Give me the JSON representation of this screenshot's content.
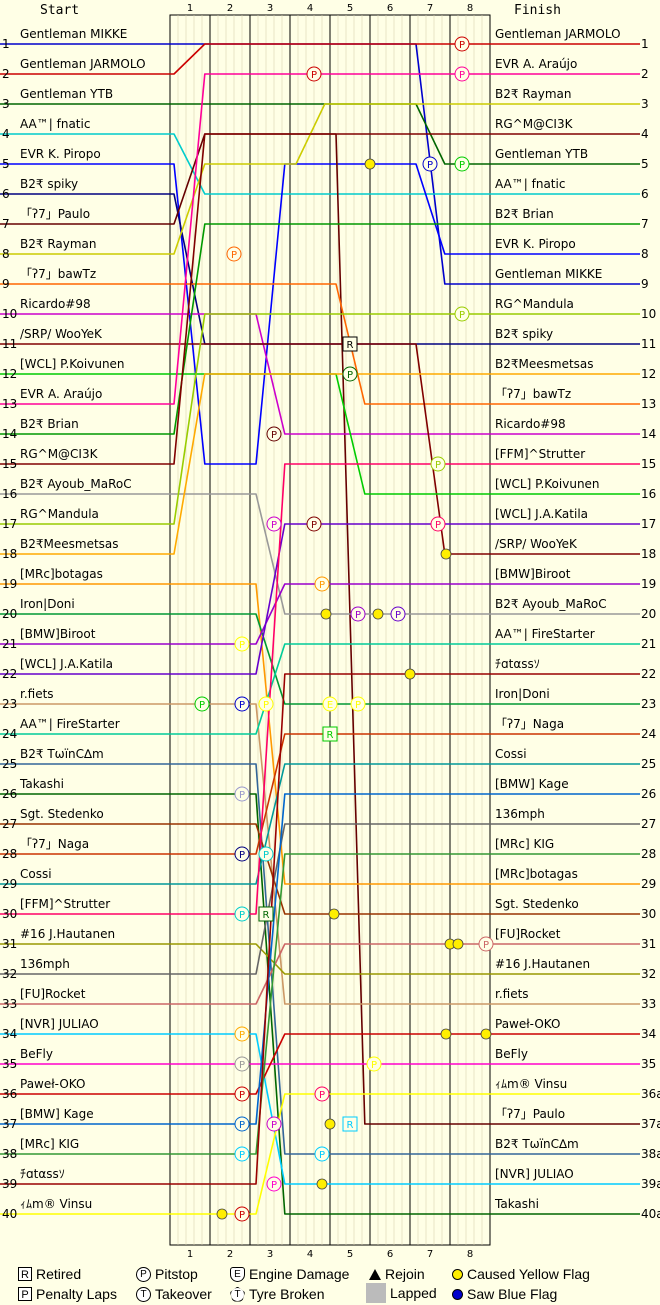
{
  "chart_data": {
    "type": "line",
    "title": "",
    "header_left": "Start",
    "header_right": "Finish",
    "laps": [
      "1",
      "2",
      "3",
      "4",
      "5",
      "6",
      "7",
      "8"
    ],
    "positions": [
      "1",
      "2",
      "3",
      "4",
      "5",
      "6",
      "7",
      "8",
      "9",
      "10",
      "11",
      "12",
      "13",
      "14",
      "15",
      "16",
      "17",
      "18",
      "19",
      "20",
      "21",
      "22",
      "23",
      "24",
      "25",
      "26",
      "27",
      "28",
      "29",
      "30",
      "31",
      "32",
      "33",
      "34",
      "35",
      "36",
      "37",
      "38",
      "39",
      "40"
    ],
    "finish_positions": [
      "1",
      "2",
      "3",
      "4",
      "5",
      "6",
      "7",
      "8",
      "9",
      "10",
      "11",
      "12",
      "13",
      "14",
      "15",
      "16",
      "17",
      "18",
      "19",
      "20",
      "21",
      "22",
      "23",
      "24",
      "25",
      "26",
      "27",
      "28",
      "29",
      "30",
      "31",
      "32",
      "33",
      "34",
      "35",
      "36a",
      "37a",
      "38a",
      "39a",
      "40a"
    ],
    "drivers": [
      {
        "name": "Gentleman MIKKE",
        "color": "#0000CC",
        "start": 1,
        "finish": 9,
        "route": [
          1,
          1,
          1,
          1,
          1,
          1,
          1,
          9,
          9
        ]
      },
      {
        "name": "Gentleman JARMOLO",
        "color": "#CC0000",
        "start": 2,
        "finish": 1,
        "route": [
          2,
          1,
          1,
          1,
          1,
          1,
          1,
          1,
          1
        ]
      },
      {
        "name": "Gentleman YTB",
        "color": "#006600",
        "start": 3,
        "finish": 5,
        "route": [
          3,
          3,
          3,
          3,
          3,
          3,
          3,
          5,
          5
        ]
      },
      {
        "name": "AA™| fnatic",
        "color": "#00CCCC",
        "start": 4,
        "finish": 6,
        "route": [
          4,
          6,
          6,
          6,
          6,
          6,
          6,
          6,
          6
        ]
      },
      {
        "name": "EVR K. Piropo",
        "color": "#0000FF",
        "start": 5,
        "finish": 8,
        "route": [
          5,
          15,
          15,
          5,
          5,
          5,
          5,
          8,
          8
        ]
      },
      {
        "name": "B2₹ spiky",
        "color": "#000080",
        "start": 6,
        "finish": 11,
        "route": [
          6,
          11,
          11,
          11,
          11,
          11,
          11,
          11,
          11
        ]
      },
      {
        "name": "「ʔ7」Paulo",
        "color": "#660000",
        "start": 7,
        "finish": 37,
        "route": [
          7,
          4,
          4,
          4,
          4,
          37,
          37,
          37,
          37
        ]
      },
      {
        "name": "B2₹ Rayman",
        "color": "#CCCC00",
        "start": 8,
        "finish": 3,
        "route": [
          8,
          5,
          5,
          5,
          3,
          3,
          3,
          3,
          3
        ]
      },
      {
        "name": "「ʔ7」bawTz",
        "color": "#FF6600",
        "start": 9,
        "finish": 13,
        "route": [
          9,
          9,
          9,
          9,
          9,
          13,
          13,
          13,
          13
        ]
      },
      {
        "name": "Ricardo#98",
        "color": "#CC00CC",
        "start": 10,
        "finish": 14,
        "route": [
          10,
          10,
          10,
          14,
          14,
          14,
          14,
          14,
          14
        ]
      },
      {
        "name": "/SRP/ WooYeK",
        "color": "#800000",
        "start": 11,
        "finish": 18,
        "route": [
          11,
          11,
          11,
          11,
          11,
          11,
          11,
          18,
          18
        ]
      },
      {
        "name": "[WCL] P.Koivunen",
        "color": "#00CC00",
        "start": 12,
        "finish": 16,
        "route": [
          12,
          12,
          12,
          12,
          12,
          16,
          16,
          16,
          16
        ]
      },
      {
        "name": "EVR A. Araújo",
        "color": "#FF0099",
        "start": 13,
        "finish": 2,
        "route": [
          13,
          2,
          2,
          2,
          2,
          2,
          2,
          2,
          2
        ]
      },
      {
        "name": "B2₹ Brian",
        "color": "#009900",
        "start": 14,
        "finish": 7,
        "route": [
          14,
          7,
          7,
          7,
          7,
          7,
          7,
          7,
          7
        ]
      },
      {
        "name": "RG^M@CI3K",
        "color": "#800000",
        "start": 15,
        "finish": 4,
        "route": [
          15,
          4,
          4,
          4,
          4,
          4,
          4,
          4,
          4
        ]
      },
      {
        "name": "B2₹ Ayoub_MaRoC",
        "color": "#999999",
        "start": 16,
        "finish": 20,
        "route": [
          16,
          16,
          16,
          20,
          20,
          20,
          20,
          20,
          20
        ]
      },
      {
        "name": "RG^Mandula",
        "color": "#99CC00",
        "start": 17,
        "finish": 10,
        "route": [
          17,
          10,
          10,
          10,
          10,
          10,
          10,
          10,
          10
        ]
      },
      {
        "name": "B2₹Meesmetsas",
        "color": "#FFAA00",
        "start": 18,
        "finish": 12,
        "route": [
          18,
          12,
          12,
          12,
          12,
          12,
          12,
          12,
          12
        ]
      },
      {
        "name": "[MRc]botagas",
        "color": "#FF9900",
        "start": 19,
        "finish": 29,
        "route": [
          19,
          19,
          19,
          29,
          29,
          29,
          29,
          29,
          29
        ]
      },
      {
        "name": "Iron|Doni",
        "color": "#009933",
        "start": 20,
        "finish": 23,
        "route": [
          20,
          20,
          20,
          23,
          23,
          23,
          23,
          23,
          23
        ]
      },
      {
        "name": "[BMW]Biroot",
        "color": "#9900CC",
        "start": 21,
        "finish": 19,
        "route": [
          21,
          21,
          21,
          19,
          19,
          19,
          19,
          19,
          19
        ]
      },
      {
        "name": "[WCL] J.A.Katila",
        "color": "#6600CC",
        "start": 22,
        "finish": 17,
        "route": [
          22,
          22,
          22,
          17,
          17,
          17,
          17,
          17,
          17
        ]
      },
      {
        "name": "r.fiets",
        "color": "#CC9966",
        "start": 23,
        "finish": 33,
        "route": [
          23,
          23,
          23,
          33,
          33,
          33,
          33,
          33,
          33
        ]
      },
      {
        "name": "AA™| FireStarter",
        "color": "#00CC99",
        "start": 24,
        "finish": 21,
        "route": [
          24,
          24,
          24,
          21,
          21,
          21,
          21,
          21,
          21
        ]
      },
      {
        "name": "B2₹ TωïnC∆m",
        "color": "#336699",
        "start": 25,
        "finish": 38,
        "route": [
          25,
          25,
          25,
          38,
          38,
          38,
          38,
          38,
          38
        ]
      },
      {
        "name": "Takashi",
        "color": "#006600",
        "start": 26,
        "finish": 40,
        "route": [
          26,
          26,
          26,
          40,
          40,
          40,
          40,
          40,
          40
        ]
      },
      {
        "name": "Sgt. Stedenko",
        "color": "#993300",
        "start": 27,
        "finish": 30,
        "route": [
          27,
          27,
          27,
          30,
          30,
          30,
          30,
          30,
          30
        ]
      },
      {
        "name": "「ʔ7」Naga",
        "color": "#CC3300",
        "start": 28,
        "finish": 24,
        "route": [
          28,
          28,
          28,
          24,
          24,
          24,
          24,
          24,
          24
        ]
      },
      {
        "name": "Cossi",
        "color": "#009999",
        "start": 29,
        "finish": 25,
        "route": [
          29,
          29,
          29,
          25,
          25,
          25,
          25,
          25,
          25
        ]
      },
      {
        "name": "[FFM]^Strutter",
        "color": "#FF0066",
        "start": 30,
        "finish": 15,
        "route": [
          30,
          30,
          30,
          15,
          15,
          15,
          15,
          15,
          15
        ]
      },
      {
        "name": "#16 J.Hautanen",
        "color": "#999900",
        "start": 31,
        "finish": 32,
        "route": [
          31,
          31,
          31,
          32,
          32,
          32,
          32,
          32,
          32
        ]
      },
      {
        "name": "136mph",
        "color": "#666666",
        "start": 32,
        "finish": 27,
        "route": [
          32,
          32,
          32,
          27,
          27,
          27,
          27,
          27,
          27
        ]
      },
      {
        "name": "[FU]Rocket",
        "color": "#CC6666",
        "start": 33,
        "finish": 31,
        "route": [
          33,
          33,
          33,
          31,
          31,
          31,
          31,
          31,
          31
        ]
      },
      {
        "name": "[NVR] JULIAO",
        "color": "#00CCFF",
        "start": 34,
        "finish": 39,
        "route": [
          34,
          34,
          34,
          39,
          39,
          39,
          39,
          39,
          39
        ]
      },
      {
        "name": "BeFly",
        "color": "#FF00CC",
        "start": 35,
        "finish": 35,
        "route": [
          35,
          35,
          35,
          35,
          35,
          35,
          35,
          35,
          35
        ]
      },
      {
        "name": "Paweł-OKO",
        "color": "#CC0000",
        "start": 36,
        "finish": 34,
        "route": [
          36,
          36,
          36,
          34,
          34,
          34,
          34,
          34,
          34
        ]
      },
      {
        "name": "[BMW] Kage",
        "color": "#0066CC",
        "start": 37,
        "finish": 26,
        "route": [
          37,
          37,
          37,
          26,
          26,
          26,
          26,
          26,
          26
        ]
      },
      {
        "name": "[MRc] KIG",
        "color": "#339933",
        "start": 38,
        "finish": 28,
        "route": [
          38,
          38,
          38,
          28,
          28,
          28,
          28,
          28,
          28
        ]
      },
      {
        "name": "ﾁɑtαssｿ",
        "color": "#990000",
        "start": 39,
        "finish": 22,
        "route": [
          39,
          39,
          39,
          22,
          22,
          22,
          22,
          22,
          22
        ]
      },
      {
        "name": "ｨﾑm® Vinsu",
        "color": "#FFFF00",
        "start": 40,
        "finish": 36,
        "route": [
          40,
          40,
          40,
          36,
          36,
          36,
          36,
          36,
          36
        ]
      }
    ],
    "finish_order": [
      "Gentleman JARMOLO",
      "EVR A. Araújo",
      "B2₹ Rayman",
      "RG^M@CI3K",
      "Gentleman YTB",
      "AA™| fnatic",
      "B2₹ Brian",
      "EVR K. Piropo",
      "Gentleman MIKKE",
      "RG^Mandula",
      "B2₹ spiky",
      "B2₹Meesmetsas",
      "「ʔ7」bawTz",
      "Ricardo#98",
      "[FFM]^Strutter",
      "[WCL] P.Koivunen",
      "[WCL] J.A.Katila",
      "/SRP/ WooYeK",
      "[BMW]Biroot",
      "B2₹ Ayoub_MaRoC",
      "AA™| FireStarter",
      "ﾁɑtαssｿ",
      "Iron|Doni",
      "「ʔ7」Naga",
      "Cossi",
      "[BMW] Kage",
      "136mph",
      "[MRc] KIG",
      "[MRc]botagas",
      "Sgt. Stedenko",
      "[FU]Rocket",
      "#16 J.Hautanen",
      "r.fiets",
      "Paweł-OKO",
      "BeFly",
      "ｨﾑm® Vinsu",
      "「ʔ7」Paulo",
      "B2₹ TωïnC∆m",
      "[NVR] JULIAO",
      "Takashi"
    ],
    "markers": [
      {
        "type": "P",
        "lap": 7.3,
        "pos": 1,
        "color": "#CC0000"
      },
      {
        "type": "P",
        "lap": 7.3,
        "pos": 2,
        "color": "#FF0099"
      },
      {
        "type": "P",
        "lap": 3.6,
        "pos": 2,
        "color": "#CC0000"
      },
      {
        "type": "Y",
        "lap": 5.0,
        "pos": 5,
        "color": "#FFFF00"
      },
      {
        "type": "P",
        "lap": 6.5,
        "pos": 5,
        "color": "#0000CC"
      },
      {
        "type": "P",
        "lap": 7.3,
        "pos": 5,
        "color": "#00CC00"
      },
      {
        "type": "P",
        "lap": 1.6,
        "pos": 8,
        "color": "#FF6600"
      },
      {
        "type": "P",
        "lap": 7.3,
        "pos": 10,
        "color": "#99CC00"
      },
      {
        "type": "R",
        "lap": 4.5,
        "pos": 11,
        "color": "#000000"
      },
      {
        "type": "P",
        "lap": 4.5,
        "pos": 12,
        "color": "#006600"
      },
      {
        "type": "P",
        "lap": 2.6,
        "pos": 14,
        "color": "#660000"
      },
      {
        "type": "P",
        "lap": 6.7,
        "pos": 15,
        "color": "#99CC00"
      },
      {
        "type": "P",
        "lap": 2.6,
        "pos": 17,
        "color": "#CC00CC"
      },
      {
        "type": "P",
        "lap": 3.6,
        "pos": 17,
        "color": "#800000"
      },
      {
        "type": "P",
        "lap": 6.7,
        "pos": 17,
        "color": "#FF0066"
      },
      {
        "type": "Y",
        "lap": 6.9,
        "pos": 18,
        "color": "#FFFF00"
      },
      {
        "type": "P",
        "lap": 3.8,
        "pos": 19,
        "color": "#FF9900"
      },
      {
        "type": "Y",
        "lap": 3.9,
        "pos": 20,
        "color": "#FFFF00"
      },
      {
        "type": "P",
        "lap": 4.7,
        "pos": 20,
        "color": "#9900CC"
      },
      {
        "type": "Y",
        "lap": 5.2,
        "pos": 20,
        "color": "#FFFF00"
      },
      {
        "type": "P",
        "lap": 5.7,
        "pos": 20,
        "color": "#6600CC"
      },
      {
        "type": "P",
        "lap": 1.8,
        "pos": 21,
        "color": "#FFFF00"
      },
      {
        "type": "Y",
        "lap": 6.0,
        "pos": 22,
        "color": "#FFFF00"
      },
      {
        "type": "P",
        "lap": 0.8,
        "pos": 23,
        "color": "#00CC00"
      },
      {
        "type": "P",
        "lap": 1.8,
        "pos": 23,
        "color": "#0000CC"
      },
      {
        "type": "P",
        "lap": 2.4,
        "pos": 23,
        "color": "#FFFF00"
      },
      {
        "type": "E",
        "lap": 4.0,
        "pos": 23,
        "color": "#FFFF00"
      },
      {
        "type": "P",
        "lap": 4.7,
        "pos": 23,
        "color": "#FFFF00"
      },
      {
        "type": "R",
        "lap": 4.0,
        "pos": 24,
        "color": "#00CC00"
      },
      {
        "type": "P",
        "lap": 1.8,
        "pos": 26,
        "color": "#9999CC"
      },
      {
        "type": "P",
        "lap": 1.8,
        "pos": 28,
        "color": "#000080"
      },
      {
        "type": "P",
        "lap": 2.4,
        "pos": 28,
        "color": "#00CCCC"
      },
      {
        "type": "R",
        "lap": 2.4,
        "pos": 30,
        "color": "#006600"
      },
      {
        "type": "Y",
        "lap": 4.1,
        "pos": 30,
        "color": "#FFFF00"
      },
      {
        "type": "P",
        "lap": 1.8,
        "pos": 30,
        "color": "#00CCCC"
      },
      {
        "type": "Y",
        "lap": 7.0,
        "pos": 31,
        "color": "#FFFF00"
      },
      {
        "type": "Y",
        "lap": 7.2,
        "pos": 31,
        "color": "#FFFF00"
      },
      {
        "type": "P",
        "lap": 7.9,
        "pos": 31,
        "color": "#CC6666"
      },
      {
        "type": "Y",
        "lap": 6.9,
        "pos": 34,
        "color": "#FFFF00"
      },
      {
        "type": "Y",
        "lap": 7.9,
        "pos": 34,
        "color": "#FFFF00"
      },
      {
        "type": "P",
        "lap": 1.8,
        "pos": 34,
        "color": "#FFAA00"
      },
      {
        "type": "P",
        "lap": 1.8,
        "pos": 35,
        "color": "#999999"
      },
      {
        "type": "P",
        "lap": 5.1,
        "pos": 35,
        "color": "#FFFF00"
      },
      {
        "type": "P",
        "lap": 1.8,
        "pos": 36,
        "color": "#CC0000"
      },
      {
        "type": "P",
        "lap": 3.8,
        "pos": 36,
        "color": "#FF0066"
      },
      {
        "type": "P",
        "lap": 1.8,
        "pos": 37,
        "color": "#0066CC"
      },
      {
        "type": "P",
        "lap": 2.6,
        "pos": 37,
        "color": "#CC00CC"
      },
      {
        "type": "Y",
        "lap": 4.0,
        "pos": 37,
        "color": "#FFFF00"
      },
      {
        "type": "R",
        "lap": 4.5,
        "pos": 37,
        "color": "#00CCFF"
      },
      {
        "type": "P",
        "lap": 1.8,
        "pos": 38,
        "color": "#00CCFF"
      },
      {
        "type": "P",
        "lap": 3.8,
        "pos": 38,
        "color": "#00CCFF"
      },
      {
        "type": "P",
        "lap": 2.6,
        "pos": 39,
        "color": "#FF00CC"
      },
      {
        "type": "Y",
        "lap": 3.8,
        "pos": 39,
        "color": "#FFFF00"
      },
      {
        "type": "Y",
        "lap": 1.3,
        "pos": 40,
        "color": "#FFFF00"
      },
      {
        "type": "P",
        "lap": 1.8,
        "pos": 40,
        "color": "#CC0000"
      }
    ]
  },
  "legend": {
    "retired": "Retired",
    "pitstop": "Pitstop",
    "engine": "Engine Damage",
    "rejoin": "Rejoin",
    "yellow": "Caused Yellow Flag",
    "penalty": "Penalty Laps",
    "takeover": "Takeover",
    "tyre": "Tyre Broken",
    "lapped": "Lapped",
    "blue": "Saw Blue Flag",
    "sym_retired": "R",
    "sym_pitstop": "P",
    "sym_engine": "E",
    "sym_penalty": "P",
    "sym_takeover": "T",
    "sym_tyre": "T",
    "color_yellow": "#FFEE00",
    "color_blue": "#0000CC",
    "color_lapped": "#BBBBBB"
  }
}
